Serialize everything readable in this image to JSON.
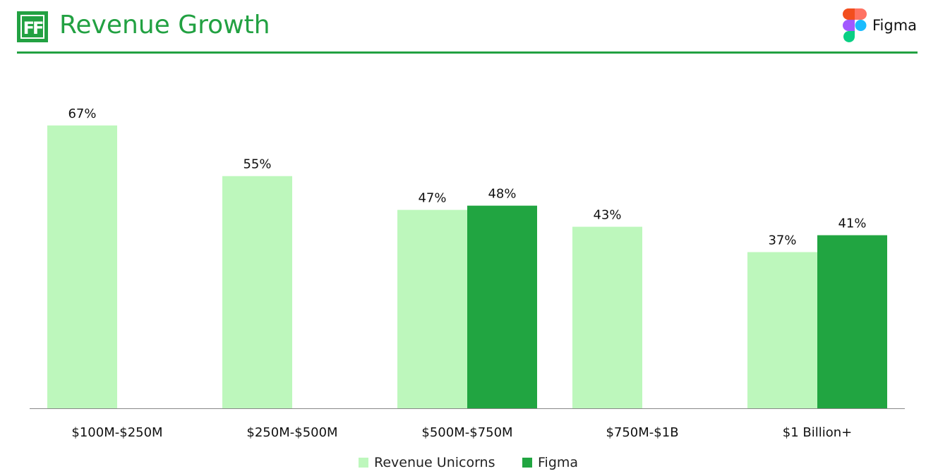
{
  "header": {
    "logo_text": "FF",
    "title": "Revenue Growth",
    "brand_name": "Figma"
  },
  "colors": {
    "accent": "#22a142",
    "series_light": "#bdf7bc",
    "series_dark": "#21a541",
    "axis": "#888888"
  },
  "chart_data": {
    "type": "bar",
    "title": "Revenue Growth",
    "xlabel": "",
    "ylabel": "",
    "ylim": [
      0,
      75
    ],
    "grid": false,
    "legend_position": "bottom-center",
    "categories": [
      "$100M-$250M",
      "$250M-$500M",
      "$500M-$750M",
      "$750M-$1B",
      "$1 Billion+"
    ],
    "series": [
      {
        "name": "Revenue Unicorns",
        "color": "#bdf7bc",
        "values": [
          67,
          55,
          47,
          43,
          37
        ],
        "labels": [
          "67%",
          "55%",
          "47%",
          "43%",
          "37%"
        ]
      },
      {
        "name": "Figma",
        "color": "#21a541",
        "values": [
          null,
          null,
          48,
          null,
          41
        ],
        "labels": [
          null,
          null,
          "48%",
          null,
          "41%"
        ]
      }
    ]
  }
}
